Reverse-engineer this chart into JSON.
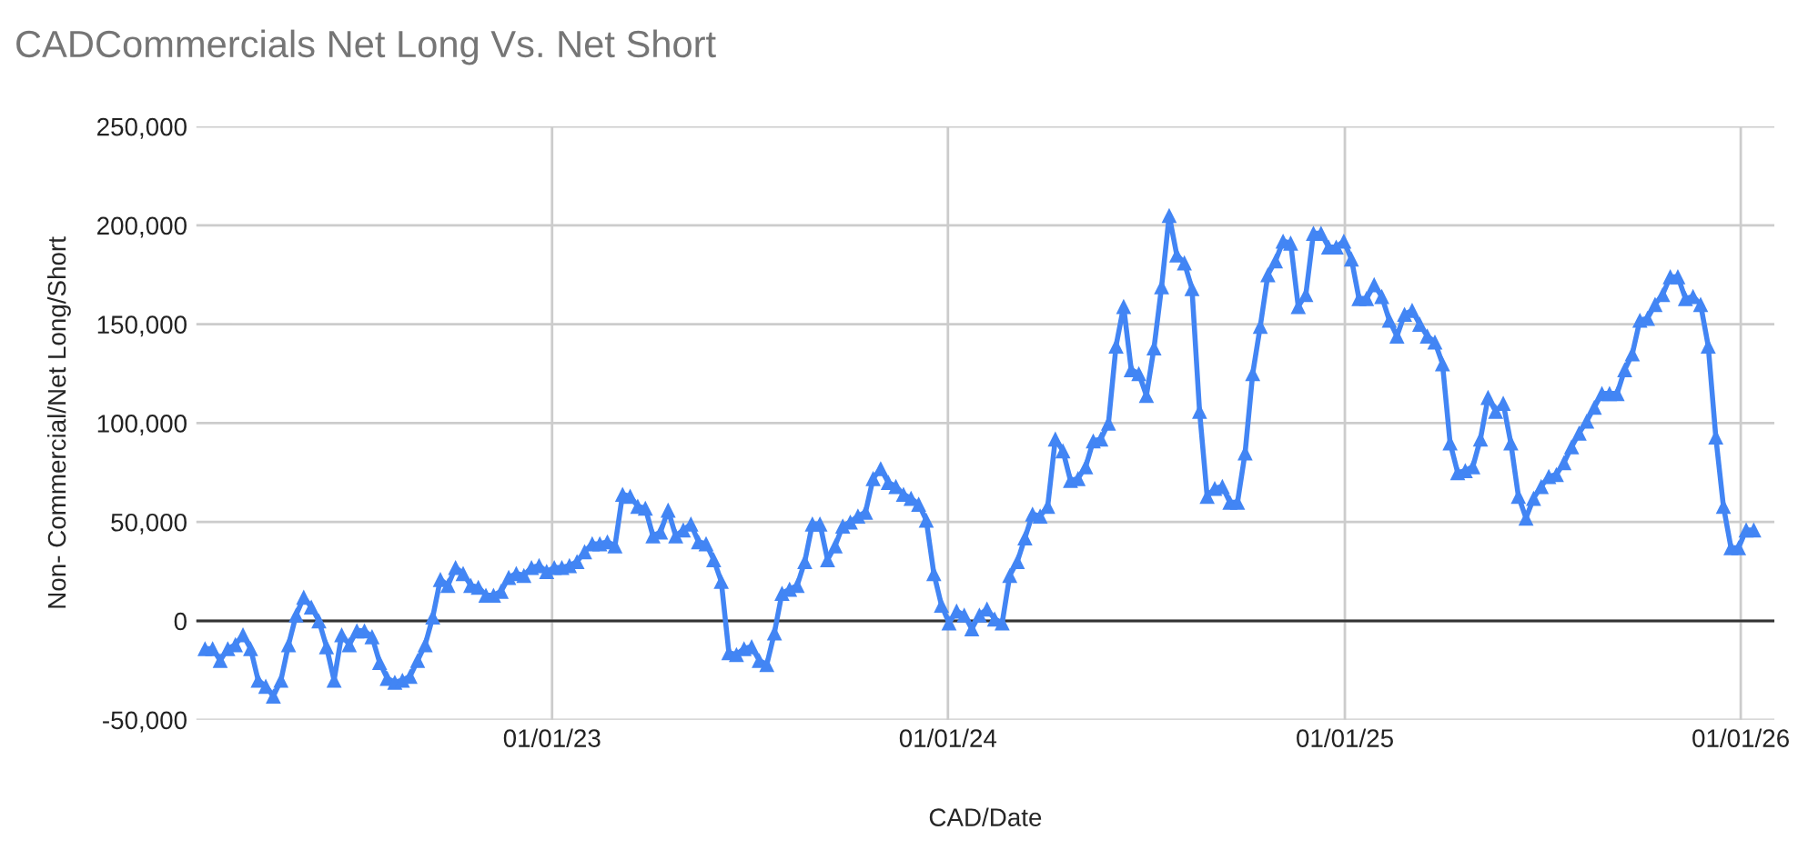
{
  "chart_data": {
    "type": "line",
    "title": "CADCommercials Net Long Vs. Net Short",
    "xlabel": "CAD/Date",
    "ylabel": "Non- Commercial/Net Long/Short",
    "x": [
      "2022-02-15",
      "2022-02-22",
      "2022-03-01",
      "2022-03-08",
      "2022-03-15",
      "2022-03-22",
      "2022-03-29",
      "2022-04-05",
      "2022-04-12",
      "2022-04-19",
      "2022-04-26",
      "2022-05-03",
      "2022-05-10",
      "2022-05-17",
      "2022-05-24",
      "2022-05-31",
      "2022-06-07",
      "2022-06-14",
      "2022-06-21",
      "2022-06-28",
      "2022-07-05",
      "2022-07-12",
      "2022-07-19",
      "2022-07-26",
      "2022-08-02",
      "2022-08-09",
      "2022-08-16",
      "2022-08-23",
      "2022-08-30",
      "2022-09-06",
      "2022-09-13",
      "2022-09-20",
      "2022-09-27",
      "2022-10-04",
      "2022-10-11",
      "2022-10-18",
      "2022-10-25",
      "2022-11-01",
      "2022-11-08",
      "2022-11-15",
      "2022-11-22",
      "2022-11-29",
      "2022-12-06",
      "2022-12-13",
      "2022-12-20",
      "2022-12-27",
      "2023-01-03",
      "2023-01-10",
      "2023-01-17",
      "2023-01-24",
      "2023-01-31",
      "2023-02-07",
      "2023-02-14",
      "2023-02-21",
      "2023-02-28",
      "2023-03-07",
      "2023-03-14",
      "2023-03-21",
      "2023-03-28",
      "2023-04-04",
      "2023-04-11",
      "2023-04-18",
      "2023-04-25",
      "2023-05-02",
      "2023-05-09",
      "2023-05-16",
      "2023-05-23",
      "2023-05-30",
      "2023-06-06",
      "2023-06-13",
      "2023-06-20",
      "2023-06-27",
      "2023-07-04",
      "2023-07-11",
      "2023-07-18",
      "2023-07-25",
      "2023-08-01",
      "2023-08-08",
      "2023-08-15",
      "2023-08-22",
      "2023-08-29",
      "2023-09-05",
      "2023-09-12",
      "2023-09-19",
      "2023-09-26",
      "2023-10-03",
      "2023-10-10",
      "2023-10-17",
      "2023-10-24",
      "2023-10-31",
      "2023-11-07",
      "2023-11-14",
      "2023-11-21",
      "2023-11-28",
      "2023-12-05",
      "2023-12-12",
      "2023-12-19",
      "2023-12-26",
      "2024-01-02",
      "2024-01-09",
      "2024-01-16",
      "2024-01-23",
      "2024-01-30",
      "2024-02-06",
      "2024-02-13",
      "2024-02-20",
      "2024-02-27",
      "2024-03-05",
      "2024-03-12",
      "2024-03-19",
      "2024-03-26",
      "2024-04-02",
      "2024-04-09",
      "2024-04-16",
      "2024-04-23",
      "2024-04-30",
      "2024-05-07",
      "2024-05-14",
      "2024-05-21",
      "2024-05-28",
      "2024-06-04",
      "2024-06-11",
      "2024-06-18",
      "2024-06-25",
      "2024-07-02",
      "2024-07-09",
      "2024-07-16",
      "2024-07-23",
      "2024-07-30",
      "2024-08-06",
      "2024-08-13",
      "2024-08-20",
      "2024-08-27",
      "2024-09-03",
      "2024-09-10",
      "2024-09-17",
      "2024-09-24",
      "2024-10-01",
      "2024-10-08",
      "2024-10-15",
      "2024-10-22",
      "2024-10-29",
      "2024-11-05",
      "2024-11-12",
      "2024-11-19",
      "2024-11-26",
      "2024-12-03",
      "2024-12-10",
      "2024-12-17",
      "2024-12-24",
      "2024-12-31",
      "2025-01-07",
      "2025-01-14",
      "2025-01-21",
      "2025-01-28",
      "2025-02-04",
      "2025-02-11",
      "2025-02-18",
      "2025-02-25",
      "2025-03-04",
      "2025-03-11",
      "2025-03-18",
      "2025-03-25",
      "2025-04-01",
      "2025-04-08",
      "2025-04-15",
      "2025-04-22",
      "2025-04-29",
      "2025-05-06",
      "2025-05-13",
      "2025-05-20",
      "2025-05-27",
      "2025-06-03",
      "2025-06-10",
      "2025-06-17",
      "2025-06-24",
      "2025-07-01",
      "2025-07-08",
      "2025-07-15",
      "2025-07-22",
      "2025-07-29",
      "2025-08-05",
      "2025-08-12",
      "2025-08-19",
      "2025-08-26",
      "2025-09-02",
      "2025-09-09",
      "2025-09-16",
      "2025-09-23",
      "2025-09-30",
      "2025-10-07",
      "2025-10-14",
      "2025-10-21",
      "2025-10-28",
      "2025-11-04",
      "2025-11-11",
      "2025-11-18",
      "2025-11-25",
      "2025-12-02",
      "2025-12-09",
      "2025-12-16",
      "2025-12-23",
      "2025-12-30",
      "2026-01-06",
      "2026-01-13"
    ],
    "series": [
      {
        "color": "#4285f4",
        "values": [
          -14000,
          -14000,
          -20000,
          -14000,
          -12000,
          -7000,
          -14000,
          -30000,
          -33000,
          -38000,
          -30000,
          -12000,
          3000,
          12000,
          7000,
          0,
          -13000,
          -30000,
          -7000,
          -12000,
          -5000,
          -5000,
          -8000,
          -21000,
          -29000,
          -31000,
          -30000,
          -28000,
          -20000,
          -12000,
          2000,
          21000,
          18000,
          27000,
          24000,
          18000,
          17000,
          13000,
          13000,
          15000,
          22000,
          24000,
          23000,
          27000,
          28000,
          25000,
          27000,
          27000,
          28000,
          30000,
          35000,
          39000,
          39000,
          40000,
          38000,
          64000,
          63000,
          58000,
          57000,
          43000,
          45000,
          56000,
          43000,
          46000,
          49000,
          40000,
          39000,
          31000,
          20000,
          -16000,
          -17000,
          -14000,
          -13000,
          -20000,
          -22000,
          -6000,
          14000,
          16000,
          18000,
          30000,
          49000,
          49000,
          31000,
          38000,
          48000,
          50000,
          53000,
          55000,
          72000,
          77000,
          70000,
          68000,
          64000,
          62000,
          59000,
          51000,
          24000,
          8000,
          -1000,
          5000,
          3000,
          -4000,
          3000,
          6000,
          1000,
          -1000,
          23000,
          30000,
          42000,
          54000,
          53000,
          58000,
          92000,
          86000,
          71000,
          72000,
          78000,
          91000,
          92000,
          100000,
          139000,
          159000,
          127000,
          125000,
          114000,
          138000,
          169000,
          205000,
          185000,
          181000,
          168000,
          106000,
          63000,
          67000,
          68000,
          60000,
          60000,
          85000,
          125000,
          149000,
          175000,
          182000,
          192000,
          191000,
          159000,
          165000,
          196000,
          196000,
          189000,
          189000,
          192000,
          183000,
          163000,
          163000,
          170000,
          164000,
          152000,
          144000,
          155000,
          157000,
          150000,
          144000,
          141000,
          130000,
          90000,
          75000,
          76000,
          78000,
          92000,
          113000,
          106000,
          110000,
          90000,
          63000,
          52000,
          62000,
          68000,
          73000,
          74000,
          80000,
          88000,
          95000,
          101000,
          108000,
          115000,
          115000,
          115000,
          127000,
          135000,
          152000,
          153000,
          160000,
          165000,
          174000,
          174000,
          163000,
          164000,
          160000,
          139000,
          93000,
          58000,
          37000,
          37000,
          46000,
          46000
        ]
      }
    ],
    "xlim": [
      "2022-02-07",
      "2026-02-01"
    ],
    "xticks": [
      {
        "value": "2023-01-01",
        "label": "01/01/23"
      },
      {
        "value": "2024-01-01",
        "label": "01/01/24"
      },
      {
        "value": "2025-01-01",
        "label": "01/01/25"
      },
      {
        "value": "2026-01-01",
        "label": "01/01/26"
      }
    ],
    "ylim": [
      -50000,
      250000
    ],
    "yticks": [
      {
        "value": -50000,
        "label": "-50,000"
      },
      {
        "value": 0,
        "label": "0"
      },
      {
        "value": 50000,
        "label": "50,000"
      },
      {
        "value": 100000,
        "label": "100,000"
      },
      {
        "value": 150000,
        "label": "150,000"
      },
      {
        "value": 200000,
        "label": "200,000"
      },
      {
        "value": 250000,
        "label": "250,000"
      }
    ],
    "ref_lines": [
      {
        "axis": "y",
        "value": 0,
        "color": "#333333"
      }
    ],
    "grid": true,
    "marker": "triangle",
    "line_style": "solid"
  }
}
